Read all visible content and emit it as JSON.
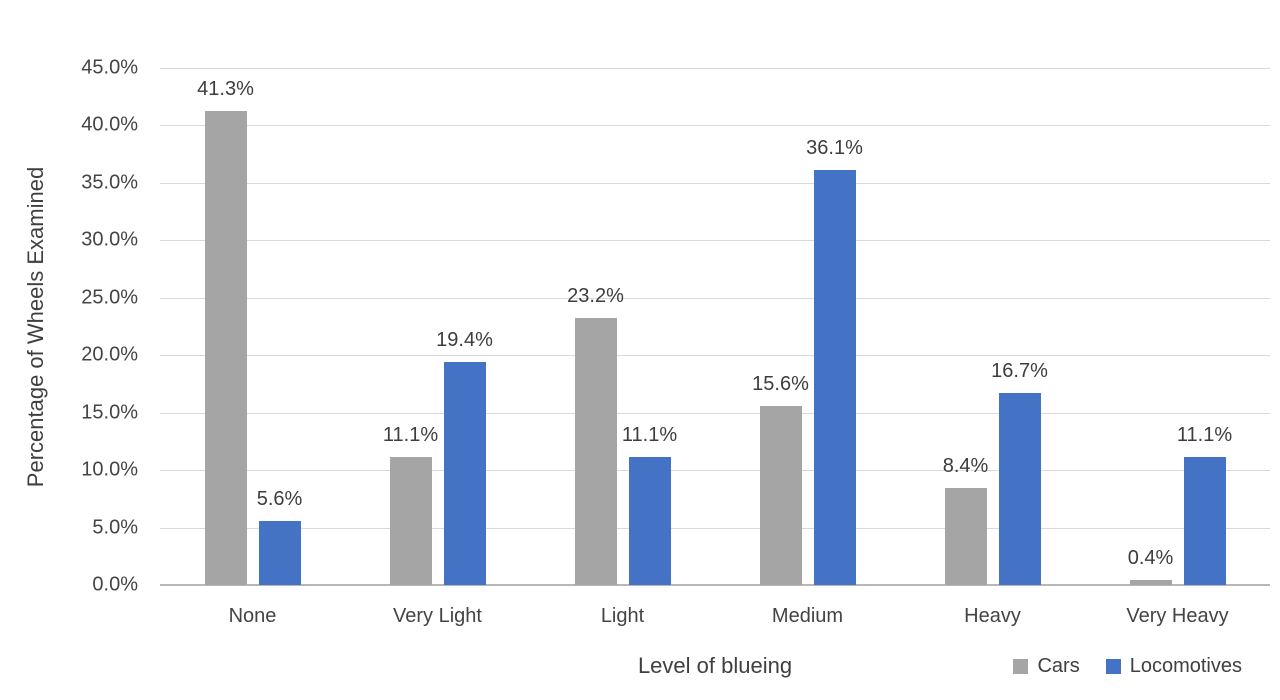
{
  "chart_data": {
    "type": "bar",
    "title": "",
    "categories": [
      "None",
      "Very Light",
      "Light",
      "Medium",
      "Heavy",
      "Very Heavy"
    ],
    "series": [
      {
        "name": "Cars",
        "color": "#a5a5a5",
        "values": [
          41.3,
          11.1,
          23.2,
          15.6,
          8.4,
          0.4
        ],
        "labels": [
          "41.3%",
          "11.1%",
          "23.2%",
          "15.6%",
          "8.4%",
          "0.4%"
        ]
      },
      {
        "name": "Locomotives",
        "color": "#4472c4",
        "values": [
          5.6,
          19.4,
          11.1,
          36.1,
          16.7,
          11.1
        ],
        "labels": [
          "5.6%",
          "19.4%",
          "11.1%",
          "36.1%",
          "16.7%",
          "11.1%"
        ]
      }
    ],
    "xlabel": "Level of blueing",
    "ylabel": "Percentage of Wheels Examined",
    "ylim": [
      0,
      45
    ],
    "yticks": [
      0,
      5,
      10,
      15,
      20,
      25,
      30,
      35,
      40,
      45
    ],
    "ytick_labels": [
      "0.0%",
      "5.0%",
      "10.0%",
      "15.0%",
      "20.0%",
      "25.0%",
      "30.0%",
      "35.0%",
      "40.0%",
      "45.0%"
    ],
    "grid": true,
    "legend_position": "bottom-right"
  },
  "style": {
    "background": "#ffffff",
    "grid_color": "#d9d9d9",
    "axis_line_color": "#b7b7b7",
    "text_color": "#404040",
    "cars_color": "#a5a5a5",
    "locomotives_color": "#4472c4"
  }
}
